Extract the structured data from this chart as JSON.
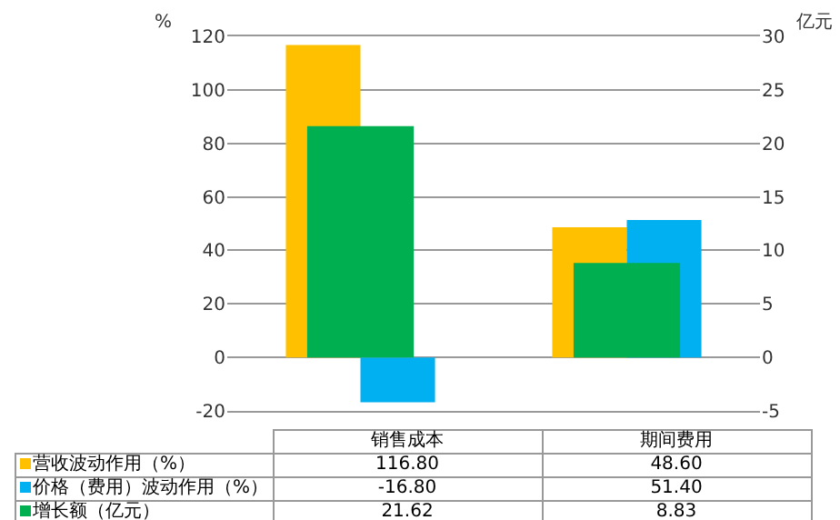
{
  "chart_data": {
    "type": "bar",
    "categories": [
      "销售成本",
      "期间费用"
    ],
    "series": [
      {
        "name": "营收波动作用（%）",
        "color": "#ffc000",
        "values": [
          116.8,
          48.6
        ],
        "value_labels": [
          "116.80",
          "48.60"
        ]
      },
      {
        "name": "价格（费用）波动作用（%）",
        "color": "#00b0f0",
        "values": [
          -16.8,
          51.4
        ],
        "value_labels": [
          "-16.80",
          "51.40"
        ]
      },
      {
        "name": "增长额（亿元）",
        "color": "#00b050",
        "values": [
          21.62,
          8.83
        ],
        "value_labels": [
          "21.62",
          "8.83"
        ],
        "axis": "y2"
      }
    ],
    "ylabel": "%",
    "y2label": "亿元",
    "ylim": [
      -20,
      120
    ],
    "yticks": [
      -20,
      0,
      20,
      40,
      60,
      80,
      100,
      120
    ],
    "y2lim": [
      -5,
      30
    ],
    "y2ticks": [
      -5,
      0,
      5,
      10,
      15,
      20,
      25,
      30
    ],
    "grid": "y",
    "legend": "bottom"
  }
}
